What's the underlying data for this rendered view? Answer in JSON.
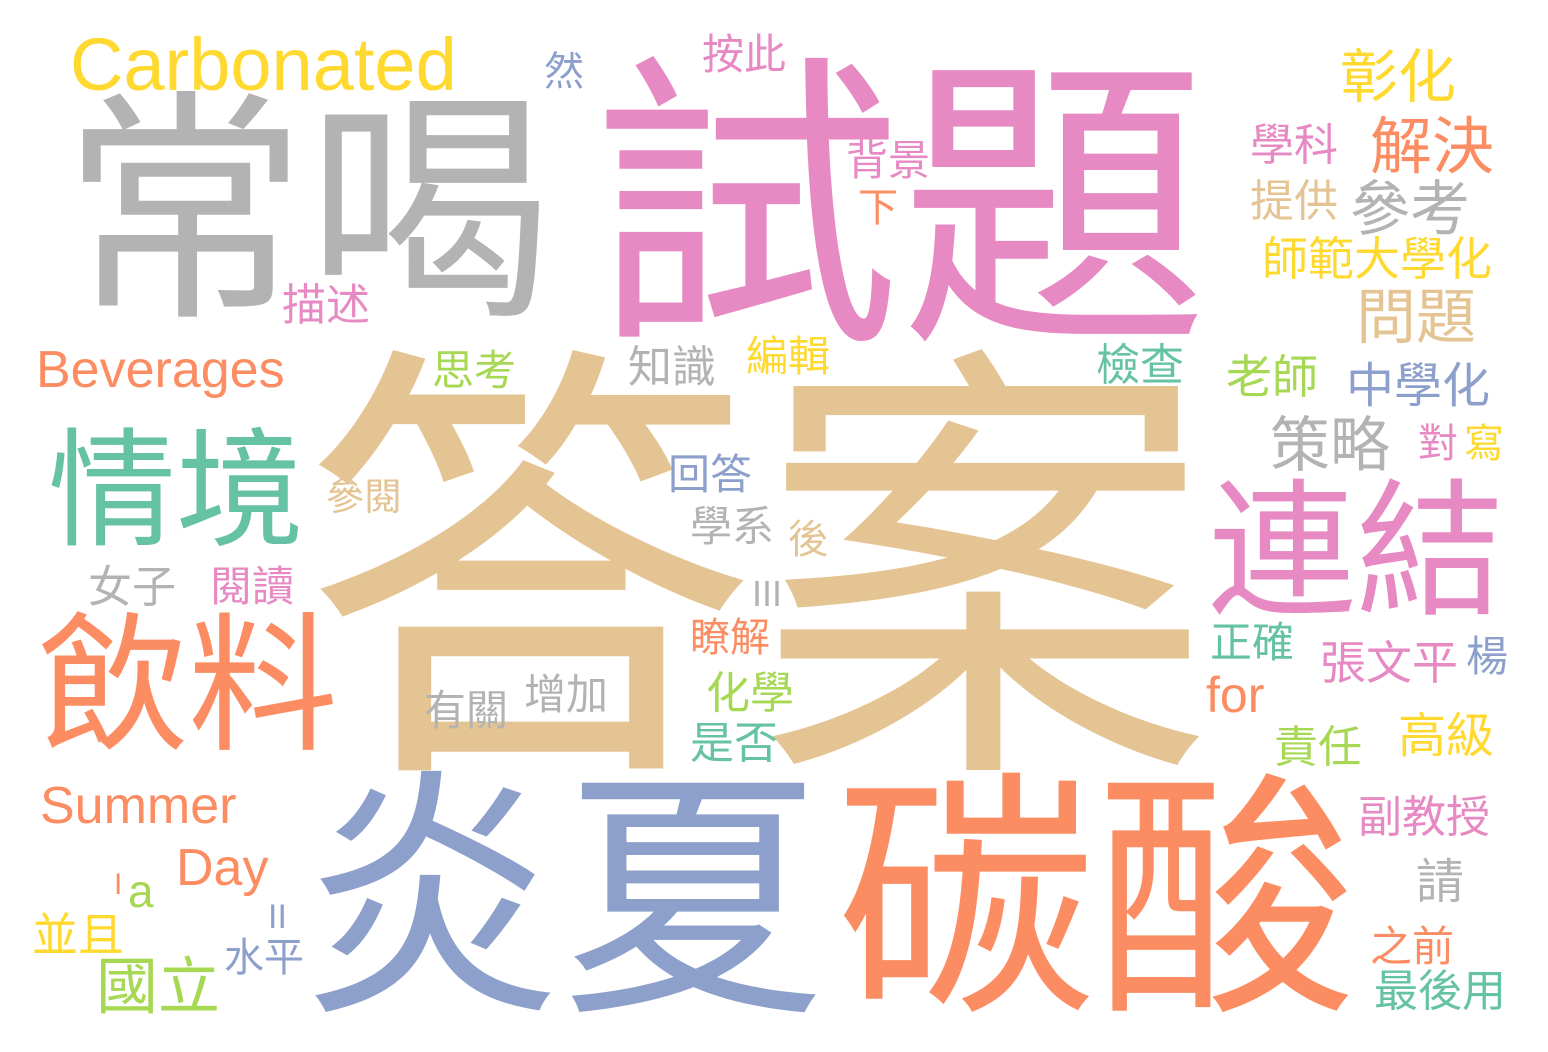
{
  "palette": {
    "pink": "#e78ac3",
    "gray": "#b3b3b3",
    "tan": "#e5c494",
    "blue": "#8da0cb",
    "orange": "#fc8d62",
    "green": "#66c2a5",
    "lime": "#a6d854",
    "yellow": "#ffd92f"
  },
  "words": [
    {
      "text": "試題",
      "color": "#e78ac3"
    },
    {
      "text": "常喝",
      "color": "#b3b3b3"
    },
    {
      "text": "答案",
      "color": "#e5c494"
    },
    {
      "text": "炎夏",
      "color": "#8da0cb"
    },
    {
      "text": "碳酸",
      "color": "#fc8d62"
    },
    {
      "text": "飲料",
      "color": "#fc8d62"
    },
    {
      "text": "連結",
      "color": "#e78ac3"
    },
    {
      "text": "情境",
      "color": "#66c2a5"
    },
    {
      "text": "Carbonated",
      "color": "#ffd92f"
    },
    {
      "text": "Beverages",
      "color": "#fc8d62"
    },
    {
      "text": "Summer",
      "color": "#fc8d62"
    },
    {
      "text": "Day",
      "color": "#fc8d62"
    },
    {
      "text": "for",
      "color": "#fc8d62"
    },
    {
      "text": "a",
      "color": "#a6d854"
    },
    {
      "text": "彰化",
      "color": "#ffd92f"
    },
    {
      "text": "解決",
      "color": "#fc8d62"
    },
    {
      "text": "參考",
      "color": "#b3b3b3"
    },
    {
      "text": "問題",
      "color": "#e5c494"
    },
    {
      "text": "策略",
      "color": "#b3b3b3"
    },
    {
      "text": "按此",
      "color": "#e78ac3"
    },
    {
      "text": "然",
      "color": "#8da0cb"
    },
    {
      "text": "背景",
      "color": "#e78ac3"
    },
    {
      "text": "下",
      "color": "#fc8d62"
    },
    {
      "text": "學科",
      "color": "#e78ac3"
    },
    {
      "text": "提供",
      "color": "#e5c494"
    },
    {
      "text": "師範大學化",
      "color": "#ffd92f"
    },
    {
      "text": "描述",
      "color": "#e78ac3"
    },
    {
      "text": "思考",
      "color": "#a6d854"
    },
    {
      "text": "知識",
      "color": "#b3b3b3"
    },
    {
      "text": "編輯",
      "color": "#ffd92f"
    },
    {
      "text": "檢查",
      "color": "#66c2a5"
    },
    {
      "text": "老師",
      "color": "#a6d854"
    },
    {
      "text": "中學化",
      "color": "#8da0cb"
    },
    {
      "text": "對",
      "color": "#e78ac3"
    },
    {
      "text": "寫",
      "color": "#ffd92f"
    },
    {
      "text": "回答",
      "color": "#8da0cb"
    },
    {
      "text": "參閱",
      "color": "#e5c494"
    },
    {
      "text": "學系",
      "color": "#b3b3b3"
    },
    {
      "text": "後",
      "color": "#e5c494"
    },
    {
      "text": "女子",
      "color": "#b3b3b3"
    },
    {
      "text": "閱讀",
      "color": "#e78ac3"
    },
    {
      "text": "III",
      "color": "#b3b3b3"
    },
    {
      "text": "瞭解",
      "color": "#fc8d62"
    },
    {
      "text": "有關",
      "color": "#b3b3b3"
    },
    {
      "text": "增加",
      "color": "#b3b3b3"
    },
    {
      "text": "正確",
      "color": "#66c2a5"
    },
    {
      "text": "張文平",
      "color": "#e78ac3"
    },
    {
      "text": "楊",
      "color": "#8da0cb"
    },
    {
      "text": "化學",
      "color": "#a6d854"
    },
    {
      "text": "是否",
      "color": "#66c2a5"
    },
    {
      "text": "責任",
      "color": "#a6d854"
    },
    {
      "text": "高級",
      "color": "#ffd92f"
    },
    {
      "text": "副教授",
      "color": "#e78ac3"
    },
    {
      "text": "請",
      "color": "#b3b3b3"
    },
    {
      "text": "I",
      "color": "#fc8d62"
    },
    {
      "text": "II",
      "color": "#8da0cb"
    },
    {
      "text": "並且",
      "color": "#ffd92f"
    },
    {
      "text": "國立",
      "color": "#a6d854"
    },
    {
      "text": "水平",
      "color": "#8da0cb"
    },
    {
      "text": "之前",
      "color": "#fc8d62"
    },
    {
      "text": "最後用",
      "color": "#66c2a5"
    }
  ]
}
